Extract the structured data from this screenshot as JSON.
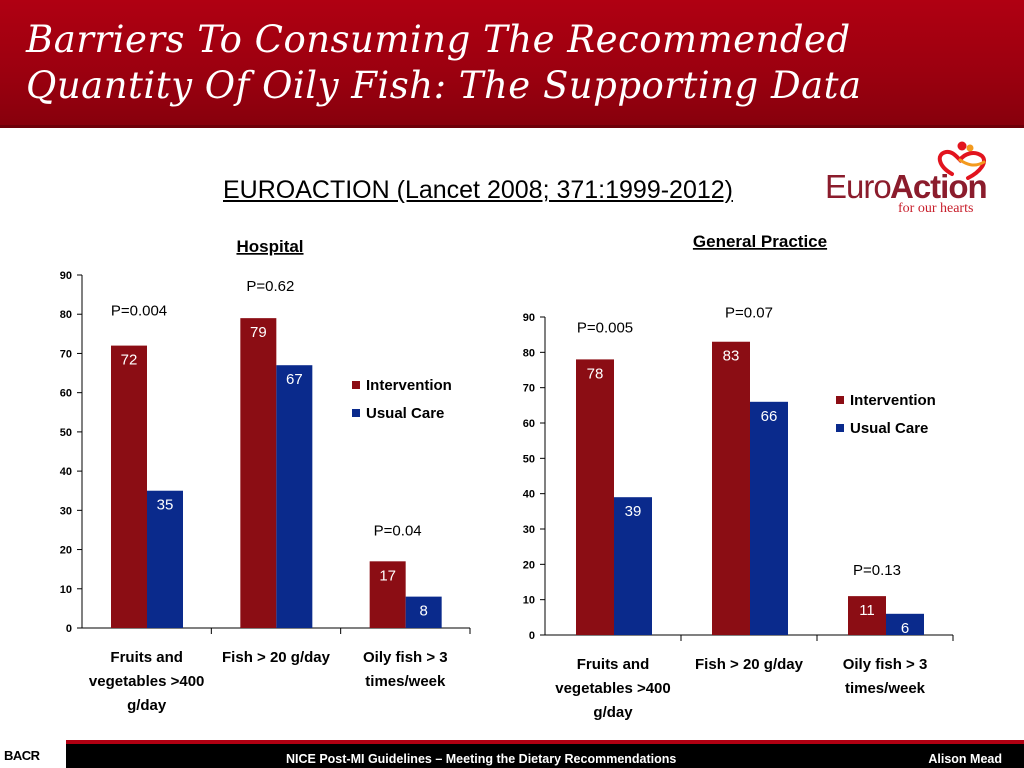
{
  "header": {
    "title_line1": "Barriers To Consuming The Recommended",
    "title_line2": "Quantity Of Oily Fish: The Supporting Data"
  },
  "subtitle": "EUROACTION (Lancet 2008; 371:1999-2012)",
  "logo": {
    "word_euro": "Euro",
    "word_action": "Action",
    "tagline": "for our hearts"
  },
  "footer": {
    "left_logo": "BACR",
    "text": "NICE Post-MI Guidelines – Meeting the Dietary Recommendations",
    "author": "Alison Mead"
  },
  "colors": {
    "header": "#9a000f",
    "intervention": "#8b0d14",
    "usual_care": "#0a2a8c"
  },
  "chart_data": [
    {
      "type": "bar",
      "title": "Hospital",
      "categories": [
        [
          "Fruits and",
          "vegetables >400",
          "g/day"
        ],
        [
          "Fish > 20 g/day"
        ],
        [
          "Oily fish > 3",
          "times/week"
        ]
      ],
      "series": [
        {
          "name": "Intervention",
          "values": [
            72,
            79,
            17
          ]
        },
        {
          "name": "Usual Care",
          "values": [
            35,
            67,
            8
          ]
        }
      ],
      "p_values": [
        "P=0.004",
        "P=0.62",
        "P=0.04"
      ],
      "ylim": [
        0,
        90
      ],
      "yticks": [
        0,
        10,
        20,
        30,
        40,
        50,
        60,
        70,
        80,
        90
      ],
      "grid": false,
      "legend": "right"
    },
    {
      "type": "bar",
      "title": "General Practice",
      "categories": [
        [
          "Fruits and",
          "vegetables >400",
          "g/day"
        ],
        [
          "Fish > 20 g/day"
        ],
        [
          "Oily fish > 3",
          "times/week"
        ]
      ],
      "series": [
        {
          "name": "Intervention",
          "values": [
            78,
            83,
            11
          ]
        },
        {
          "name": "Usual Care",
          "values": [
            39,
            66,
            6
          ]
        }
      ],
      "p_values": [
        "P=0.005",
        "P=0.07",
        "P=0.13"
      ],
      "ylim": [
        0,
        90
      ],
      "yticks": [
        0,
        10,
        20,
        30,
        40,
        50,
        60,
        70,
        80,
        90
      ],
      "grid": false,
      "legend": "right"
    }
  ]
}
